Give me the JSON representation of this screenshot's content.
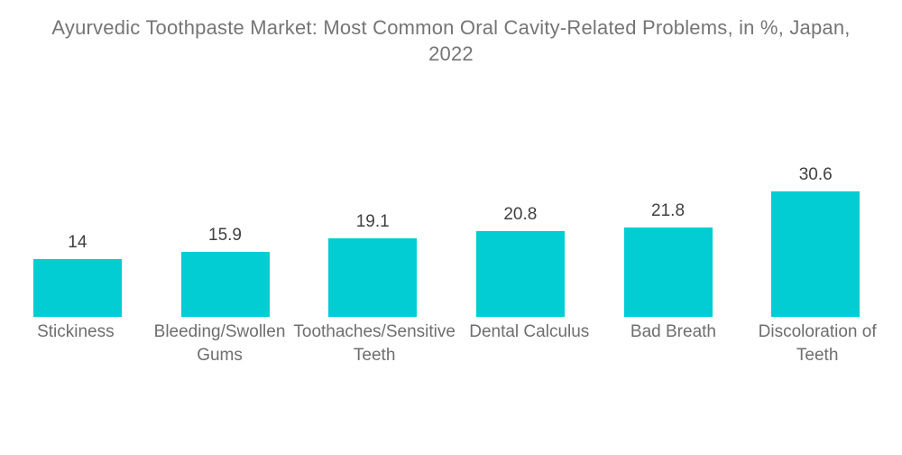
{
  "page": {
    "background_color": "#ffffff"
  },
  "chart_data": {
    "type": "bar",
    "title": "Ayurvedic Toothpaste Market: Most Common Oral Cavity-Related Problems, in %, Japan, 2022",
    "categories": [
      "Stickiness",
      "Bleeding/Swollen Gums",
      "Toothaches/Sensitive Teeth",
      "Dental Calculus",
      "Bad Breath",
      "Discoloration of Teeth"
    ],
    "values": [
      14,
      15.9,
      19.1,
      20.8,
      21.8,
      30.6
    ],
    "data_labels": [
      "14",
      "15.9",
      "19.1",
      "20.8",
      "21.8",
      "30.6"
    ],
    "unit": "%",
    "xlabel": "",
    "ylabel": "",
    "ylim": [
      0,
      37.6
    ],
    "grid": false,
    "legend": false,
    "axes_visible": false,
    "bar_color": "#01CDD3",
    "title_color": "#757575",
    "value_label_color": "#404040",
    "category_label_color": "#6E6E6E"
  }
}
